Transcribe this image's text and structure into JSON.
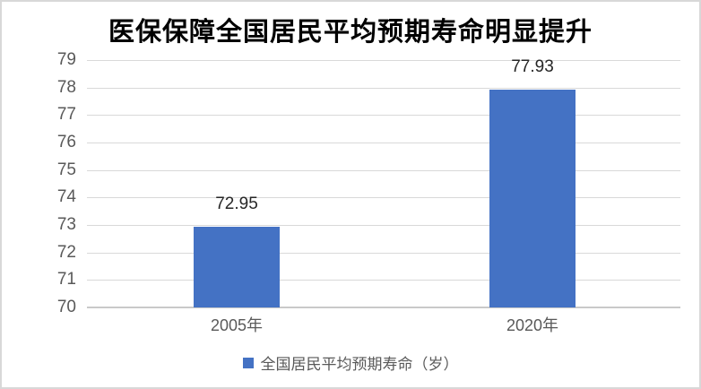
{
  "chart_data": {
    "type": "bar",
    "title": "医保保障全国居民平均预期寿命明显提升",
    "categories": [
      "2005年",
      "2020年"
    ],
    "values": [
      72.95,
      77.93
    ],
    "data_labels": [
      "72.95",
      "77.93"
    ],
    "series_name": "全国居民平均预期寿命（岁）",
    "legend": "全国居民平均预期寿命（岁）",
    "legend_position": "bottom",
    "xlabel": "",
    "ylabel": "",
    "ylim": [
      70,
      79
    ],
    "yticks": [
      70,
      71,
      72,
      73,
      74,
      75,
      76,
      77,
      78,
      79
    ],
    "grid": true,
    "colors": {
      "bar": "#4472c4",
      "gridline": "#d9d9d9",
      "axis_text": "#595959",
      "data_label_text": "#262626",
      "title_text": "#000000"
    }
  }
}
